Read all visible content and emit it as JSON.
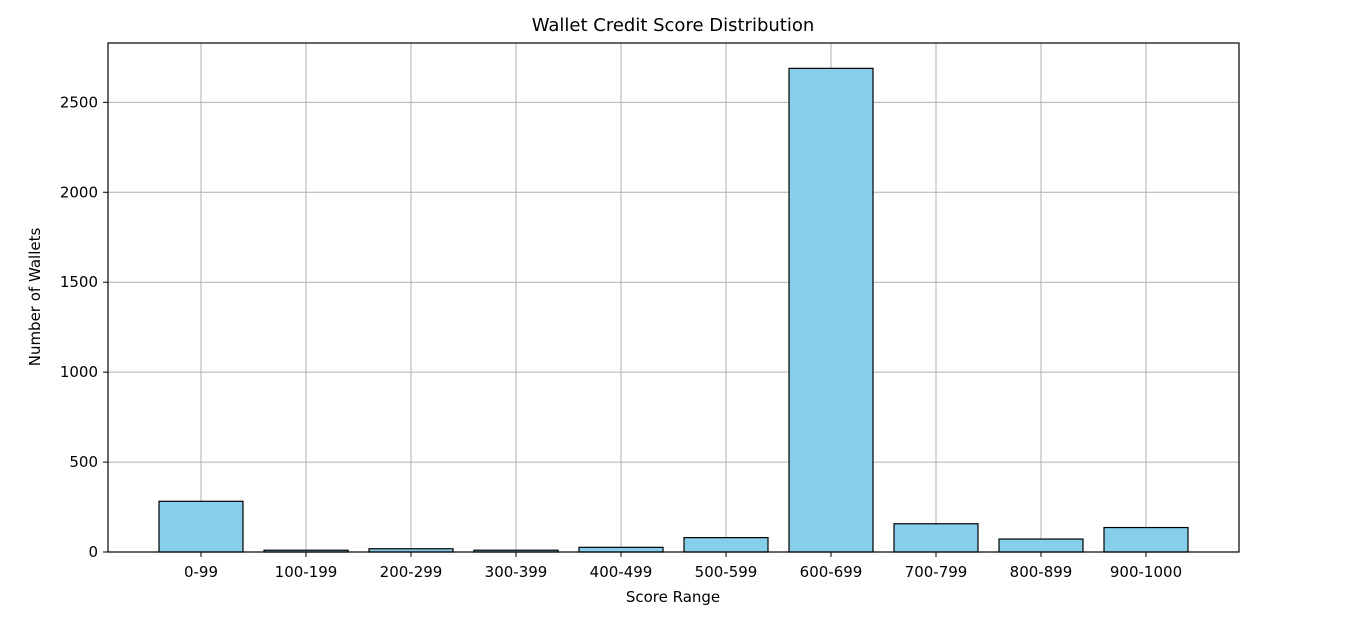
{
  "chart_data": {
    "type": "bar",
    "title": "Wallet Credit Score Distribution",
    "xlabel": "Score Range",
    "ylabel": "Number of Wallets",
    "categories": [
      "0-99",
      "100-199",
      "200-299",
      "300-399",
      "400-499",
      "500-599",
      "600-699",
      "700-799",
      "800-899",
      "900-1000"
    ],
    "values": [
      282,
      10,
      18,
      10,
      26,
      80,
      2689,
      157,
      72,
      136
    ],
    "yticks": [
      0,
      500,
      1000,
      1500,
      2000,
      2500
    ],
    "ylim": [
      0,
      2830
    ],
    "grid": true,
    "bar_color": "#87ceeb",
    "edge_color": "#000000",
    "grid_color": "#b0b0b0"
  }
}
